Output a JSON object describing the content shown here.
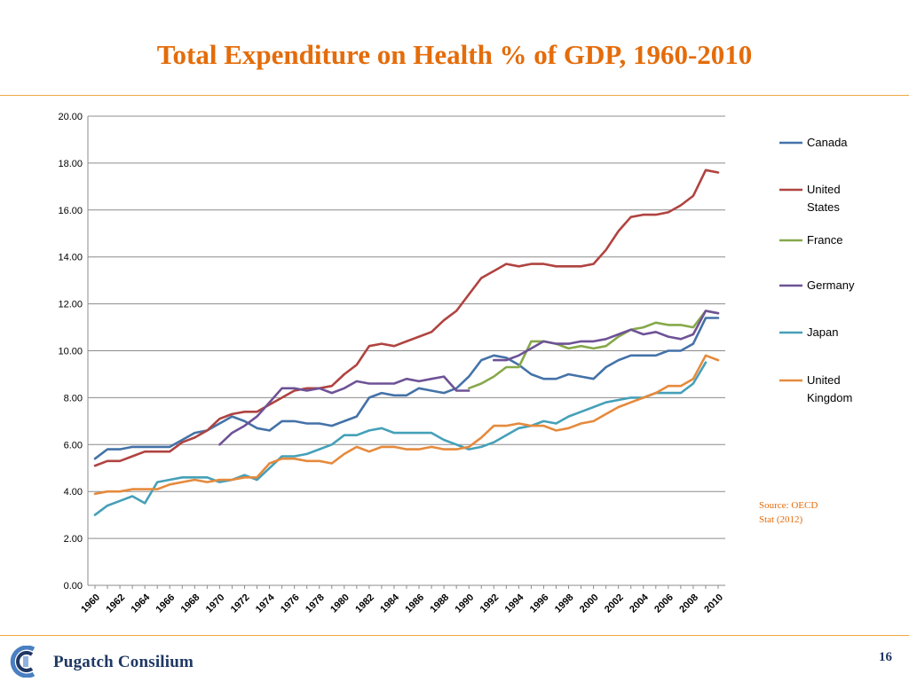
{
  "slide": {
    "title": "Total Expenditure on Health % of GDP, 1960-2010",
    "source": "Source: OECD Stat (2012)",
    "logo_text": "Pugatch Consilium",
    "page_number": "16",
    "accent_color": "#e46c0a"
  },
  "chart_data": {
    "type": "line",
    "title": "Total Expenditure on Health % of GDP, 1960-2010",
    "xlabel": "",
    "ylabel": "",
    "ylim": [
      0,
      20
    ],
    "xlim": [
      1960,
      2010
    ],
    "yticks": [
      "0.00",
      "2.00",
      "4.00",
      "6.00",
      "8.00",
      "10.00",
      "12.00",
      "14.00",
      "16.00",
      "18.00",
      "20.00"
    ],
    "xticks": [
      "1960",
      "1962",
      "1964",
      "1966",
      "1968",
      "1970",
      "1972",
      "1974",
      "1976",
      "1978",
      "1980",
      "1982",
      "1984",
      "1986",
      "1988",
      "1990",
      "1992",
      "1994",
      "1996",
      "1998",
      "2000",
      "2002",
      "2004",
      "2006",
      "2008",
      "2010"
    ],
    "grid": true,
    "legend": "right",
    "series": [
      {
        "name": "Canada",
        "color": "#4472a8",
        "start": 1960,
        "values": [
          5.4,
          5.8,
          5.8,
          5.9,
          5.9,
          5.9,
          5.9,
          6.2,
          6.5,
          6.6,
          6.9,
          7.2,
          7.0,
          6.7,
          6.6,
          7.0,
          7.0,
          6.9,
          6.9,
          6.8,
          7.0,
          7.2,
          8.0,
          8.2,
          8.1,
          8.1,
          8.4,
          8.3,
          8.2,
          8.4,
          8.9,
          9.6,
          9.8,
          9.7,
          9.4,
          9.0,
          8.8,
          8.8,
          9.0,
          8.9,
          8.8,
          9.3,
          9.6,
          9.8,
          9.8,
          9.8,
          10.0,
          10.0,
          10.3,
          11.4,
          11.4
        ]
      },
      {
        "name": "United States",
        "color": "#b04340",
        "start": 1960,
        "values": [
          5.1,
          5.3,
          5.3,
          5.5,
          5.7,
          5.7,
          5.7,
          6.1,
          6.3,
          6.6,
          7.1,
          7.3,
          7.4,
          7.4,
          7.7,
          8.0,
          8.3,
          8.4,
          8.4,
          8.5,
          9.0,
          9.4,
          10.2,
          10.3,
          10.2,
          10.4,
          10.6,
          10.8,
          11.3,
          11.7,
          12.4,
          13.1,
          13.4,
          13.7,
          13.6,
          13.7,
          13.7,
          13.6,
          13.6,
          13.6,
          13.7,
          14.3,
          15.1,
          15.7,
          15.8,
          15.8,
          15.9,
          16.2,
          16.6,
          17.7,
          17.6
        ]
      },
      {
        "name": "France",
        "color": "#86a84a",
        "start": 1990,
        "values": [
          8.4,
          8.6,
          8.9,
          9.3,
          9.3,
          10.4,
          10.4,
          10.3,
          10.1,
          10.2,
          10.1,
          10.2,
          10.6,
          10.9,
          11.0,
          11.2,
          11.1,
          11.1,
          11.0,
          11.7,
          11.6
        ]
      },
      {
        "name": "Germany",
        "color": "#6e5296",
        "start": 1970,
        "values": [
          6.0,
          6.5,
          6.8,
          7.2,
          7.8,
          8.4,
          8.4,
          8.3,
          8.4,
          8.2,
          8.4,
          8.7,
          8.6,
          8.6,
          8.6,
          8.8,
          8.7,
          8.8,
          8.9,
          8.3,
          8.3
        ]
      },
      {
        "name": "Germany",
        "color": "#6e5296",
        "start": 1992,
        "values": [
          9.6,
          9.6,
          9.8,
          10.1,
          10.4,
          10.3,
          10.3,
          10.4,
          10.4,
          10.5,
          10.7,
          10.9,
          10.7,
          10.8,
          10.6,
          10.5,
          10.7,
          11.7,
          11.6
        ]
      },
      {
        "name": "Japan",
        "color": "#45a0b8",
        "start": 1960,
        "values": [
          3.0,
          3.4,
          3.6,
          3.8,
          3.5,
          4.4,
          4.5,
          4.6,
          4.6,
          4.6,
          4.4,
          4.5,
          4.7,
          4.5,
          5.0,
          5.5,
          5.5,
          5.6,
          5.8,
          6.0,
          6.4,
          6.4,
          6.6,
          6.7,
          6.5,
          6.5,
          6.5,
          6.5,
          6.2,
          6.0,
          5.8,
          5.9,
          6.1,
          6.4,
          6.7,
          6.8,
          7.0,
          6.9,
          7.2,
          7.4,
          7.6,
          7.8,
          7.9,
          8.0,
          8.0,
          8.2,
          8.2,
          8.2,
          8.6,
          9.5
        ]
      },
      {
        "name": "United Kingdom",
        "color": "#e58a3c",
        "start": 1960,
        "values": [
          3.9,
          4.0,
          4.0,
          4.1,
          4.1,
          4.1,
          4.3,
          4.4,
          4.5,
          4.4,
          4.5,
          4.5,
          4.6,
          4.6,
          5.2,
          5.4,
          5.4,
          5.3,
          5.3,
          5.2,
          5.6,
          5.9,
          5.7,
          5.9,
          5.9,
          5.8,
          5.8,
          5.9,
          5.8,
          5.8,
          5.9,
          6.3,
          6.8,
          6.8,
          6.9,
          6.8,
          6.8,
          6.6,
          6.7,
          6.9,
          7.0,
          7.3,
          7.6,
          7.8,
          8.0,
          8.2,
          8.5,
          8.5,
          8.8,
          9.8,
          9.6
        ]
      }
    ],
    "legend_entries": [
      {
        "lines": [
          "Canada"
        ],
        "color": "#4472a8"
      },
      {
        "lines": [
          "United",
          "States"
        ],
        "color": "#b04340"
      },
      {
        "lines": [
          "France"
        ],
        "color": "#86a84a"
      },
      {
        "lines": [
          "Germany"
        ],
        "color": "#6e5296"
      },
      {
        "lines": [
          "Japan"
        ],
        "color": "#45a0b8"
      },
      {
        "lines": [
          "United",
          "Kingdom"
        ],
        "color": "#e58a3c"
      }
    ]
  }
}
